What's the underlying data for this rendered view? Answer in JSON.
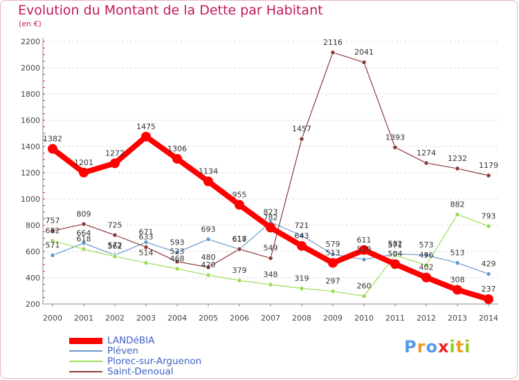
{
  "chart_data": {
    "type": "line",
    "title": "Evolution du Montant de la Dette par Habitant",
    "subtitle": "(en €)",
    "x": [
      "2000",
      "2001",
      "2002",
      "2003",
      "2004",
      "2005",
      "2006",
      "2007",
      "2008",
      "2009",
      "2010",
      "2011",
      "2012",
      "2013",
      "2014"
    ],
    "ylim": [
      200,
      2200
    ],
    "yticks": [
      200,
      400,
      600,
      800,
      1000,
      1200,
      1400,
      1600,
      1800,
      2000,
      2200
    ],
    "grid": "horizontal-dashed",
    "legend": "bottom-left",
    "series": [
      {
        "name": "LANDéBIA",
        "color": "#ff0000",
        "values": [
          1382,
          1201,
          1272,
          1475,
          1306,
          1134,
          955,
          782,
          643,
          513,
          611,
          504,
          402,
          308,
          237
        ],
        "labels": [
          "1382",
          "1201",
          "1272",
          "1475",
          "1306",
          "1134",
          "955",
          "782",
          "643",
          "513",
          "611",
          "504",
          "402",
          "308",
          "237"
        ]
      },
      {
        "name": "Pléven",
        "color": "#6699cc",
        "values": [
          571,
          664,
          572,
          671,
          593,
          693,
          617,
          823,
          721,
          579,
          539,
          582,
          573,
          513,
          429
        ],
        "labels": [
          "571",
          "664",
          "572",
          "671",
          "593",
          "693",
          "617",
          "823",
          "721",
          "579",
          "539",
          "582",
          "573",
          "513",
          "429"
        ]
      },
      {
        "name": "Plorec-sur-Arguenon",
        "color": "#99dd55",
        "values": [
          682,
          618,
          562,
          514,
          468,
          420,
          379,
          348,
          319,
          297,
          260,
          571,
          496,
          882,
          793
        ],
        "labels": [
          "682",
          "618",
          "562",
          "514",
          "468",
          "420",
          "379",
          "348",
          "319",
          "297",
          "260",
          "571",
          "496",
          "882",
          "793"
        ]
      },
      {
        "name": "Saint-Denoual",
        "color": "#8b3a3a",
        "values": [
          757,
          809,
          725,
          633,
          523,
          480,
          618,
          549,
          1457,
          2116,
          2041,
          1393,
          1274,
          1232,
          1179
        ],
        "labels": [
          "757",
          "809",
          "725",
          "633",
          "523",
          "480",
          "618",
          "549",
          "1457",
          "2116",
          "2041",
          "1393",
          "1274",
          "1232",
          "1179"
        ]
      }
    ]
  },
  "brand": {
    "letters": [
      "P",
      "r",
      "o",
      "x",
      "i",
      "t",
      "i"
    ],
    "colors": [
      "#5599ee",
      "#ee9922",
      "#5599ee",
      "#ee2222",
      "#99cc22",
      "#ee9922",
      "#99cc22"
    ]
  }
}
